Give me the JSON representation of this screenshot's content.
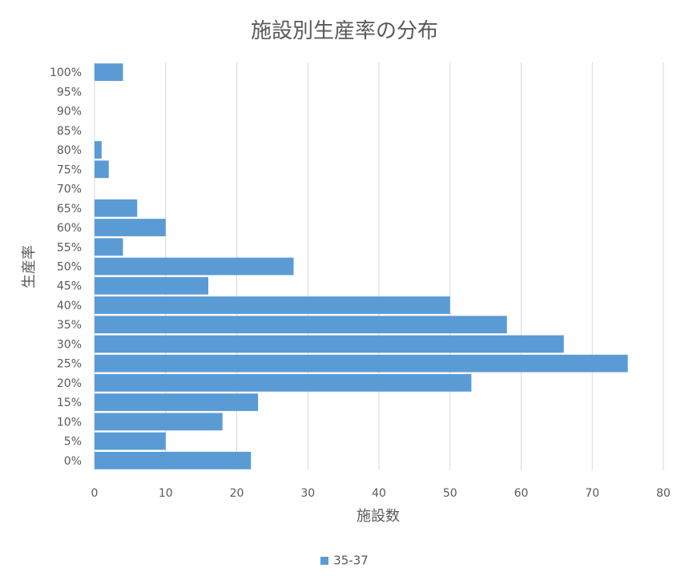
{
  "chart_data": {
    "type": "bar",
    "orientation": "horizontal",
    "title": "施設別生産率の分布",
    "xlabel": "施設数",
    "ylabel": "生産率",
    "xlim": [
      0,
      80
    ],
    "xticks": [
      "0",
      "10",
      "20",
      "30",
      "40",
      "50",
      "60",
      "70",
      "80"
    ],
    "categories": [
      "0%",
      "5%",
      "10%",
      "15%",
      "20%",
      "25%",
      "30%",
      "35%",
      "40%",
      "45%",
      "50%",
      "55%",
      "60%",
      "65%",
      "70%",
      "75%",
      "80%",
      "85%",
      "90%",
      "95%",
      "100%"
    ],
    "series": [
      {
        "name": "35-37",
        "color": "#5B9BD5",
        "values": [
          22,
          10,
          18,
          23,
          53,
          75,
          66,
          58,
          50,
          16,
          28,
          4,
          10,
          6,
          0,
          2,
          1,
          0,
          0,
          0,
          4
        ]
      }
    ],
    "grid": "vertical-major",
    "legend": "bottom-center"
  }
}
